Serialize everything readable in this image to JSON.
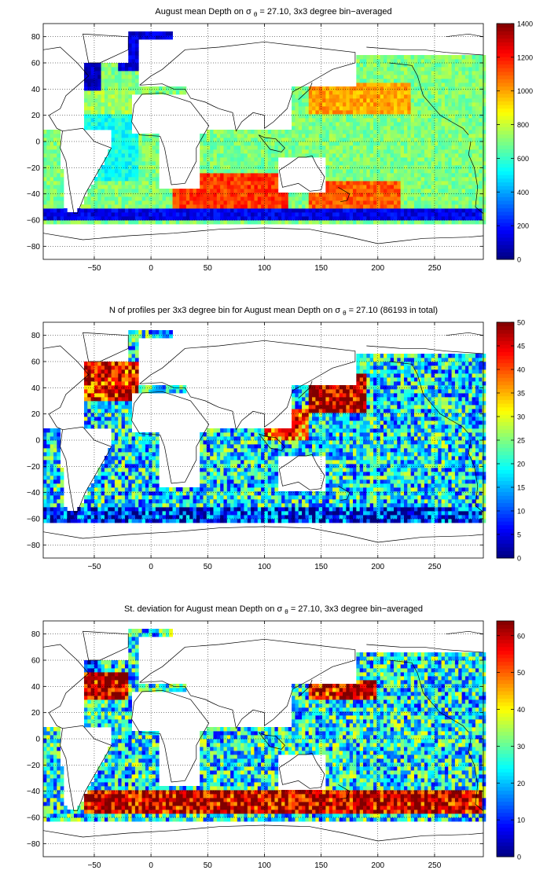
{
  "chart_data": [
    {
      "type": "heatmap",
      "title": "August mean Depth on",
      "title_sigma": "σ",
      "title_sub": "θ",
      "title_rest": " = 27.10, 3x3 degree bin−averaged",
      "xlim": [
        -95,
        293
      ],
      "ylim": [
        -90,
        90
      ],
      "xticks": [
        -50,
        0,
        50,
        100,
        150,
        200,
        250
      ],
      "yticks": [
        -80,
        -60,
        -40,
        -20,
        0,
        20,
        40,
        60,
        80
      ],
      "grid": true,
      "colorbar": {
        "min": 0,
        "max": 1400,
        "ticks": [
          0,
          200,
          400,
          600,
          800,
          1000,
          1200,
          1400
        ],
        "colormap": "jet"
      },
      "regions": [
        {
          "lon": [
            -95,
            -45
          ],
          "lat": [
            40,
            80
          ],
          "value": 100
        },
        {
          "lon": [
            -30,
            20
          ],
          "lat": [
            55,
            85
          ],
          "value": 120
        },
        {
          "lon": [
            -95,
            -15
          ],
          "lat": [
            20,
            40
          ],
          "value": 750
        },
        {
          "lon": [
            -60,
            -10
          ],
          "lat": [
            -30,
            20
          ],
          "value": 550
        },
        {
          "lon": [
            20,
            120
          ],
          "lat": [
            -50,
            -25
          ],
          "value": 1150
        },
        {
          "lon": [
            140,
            220
          ],
          "lat": [
            -50,
            -30
          ],
          "value": 1100
        },
        {
          "lon": [
            140,
            230
          ],
          "lat": [
            20,
            45
          ],
          "value": 1000
        },
        {
          "lon": [
            -95,
            293
          ],
          "lat": [
            -60,
            -52
          ],
          "value": 150
        }
      ],
      "base_value": 700
    },
    {
      "type": "heatmap",
      "title": "N of profiles per 3x3 degree bin for August mean Depth on",
      "title_sigma": "σ",
      "title_sub": "θ",
      "title_rest": " = 27.10 (86193 in total)",
      "xlim": [
        -95,
        293
      ],
      "ylim": [
        -90,
        90
      ],
      "xticks": [
        -50,
        0,
        50,
        100,
        150,
        200,
        250
      ],
      "yticks": [
        -80,
        -60,
        -40,
        -20,
        0,
        20,
        40,
        60,
        80
      ],
      "grid": true,
      "colorbar": {
        "min": 0,
        "max": 50,
        "ticks": [
          0,
          5,
          10,
          15,
          20,
          25,
          30,
          35,
          40,
          45,
          50
        ],
        "colormap": "jet"
      },
      "regions": [
        {
          "lon": [
            140,
            190
          ],
          "lat": [
            20,
            50
          ],
          "value": 48
        },
        {
          "lon": [
            -70,
            -10
          ],
          "lat": [
            30,
            60
          ],
          "value": 44
        },
        {
          "lon": [
            100,
            140
          ],
          "lat": [
            0,
            25
          ],
          "value": 40
        },
        {
          "lon": [
            -95,
            293
          ],
          "lat": [
            -62,
            -50
          ],
          "value": 8
        }
      ],
      "base_value": 18
    },
    {
      "type": "heatmap",
      "title": "St. deviation for August mean Depth on",
      "title_sigma": "σ",
      "title_sub": "θ",
      "title_rest": " = 27.10, 3x3 degree bin−averaged",
      "xlim": [
        -95,
        293
      ],
      "ylim": [
        -90,
        90
      ],
      "xticks": [
        -50,
        0,
        50,
        100,
        150,
        200,
        250
      ],
      "yticks": [
        -80,
        -60,
        -40,
        -20,
        0,
        20,
        40,
        60,
        80
      ],
      "grid": true,
      "colorbar": {
        "min": 0,
        "max": 64,
        "ticks": [
          0,
          10,
          20,
          30,
          40,
          50,
          60
        ],
        "colormap": "jet"
      },
      "regions": [
        {
          "lon": [
            -80,
            -20
          ],
          "lat": [
            30,
            50
          ],
          "value": 60
        },
        {
          "lon": [
            -60,
            293
          ],
          "lat": [
            -58,
            -40
          ],
          "value": 60
        },
        {
          "lon": [
            140,
            200
          ],
          "lat": [
            30,
            45
          ],
          "value": 58
        },
        {
          "lon": [
            -95,
            -45
          ],
          "lat": [
            50,
            80
          ],
          "value": 8
        }
      ],
      "base_value": 24
    }
  ]
}
